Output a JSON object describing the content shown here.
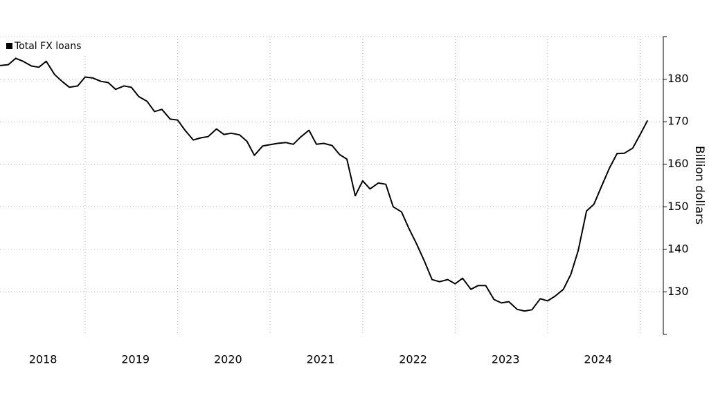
{
  "chart_data": {
    "type": "line",
    "y_label": "Billion dollars",
    "x": [
      2018.08,
      2018.17,
      2018.25,
      2018.33,
      2018.42,
      2018.5,
      2018.58,
      2018.67,
      2018.75,
      2018.83,
      2018.92,
      2019.0,
      2019.08,
      2019.17,
      2019.25,
      2019.33,
      2019.42,
      2019.5,
      2019.58,
      2019.67,
      2019.75,
      2019.83,
      2019.92,
      2020.0,
      2020.08,
      2020.17,
      2020.25,
      2020.33,
      2020.42,
      2020.5,
      2020.58,
      2020.67,
      2020.75,
      2020.83,
      2020.92,
      2021.0,
      2021.08,
      2021.17,
      2021.25,
      2021.33,
      2021.42,
      2021.5,
      2021.58,
      2021.67,
      2021.75,
      2021.83,
      2021.92,
      2022.0,
      2022.08,
      2022.17,
      2022.25,
      2022.33,
      2022.42,
      2022.5,
      2022.58,
      2022.67,
      2022.75,
      2022.83,
      2022.92,
      2023.0,
      2023.08,
      2023.17,
      2023.25,
      2023.33,
      2023.42,
      2023.5,
      2023.58,
      2023.67,
      2023.75,
      2023.83,
      2023.92,
      2024.0,
      2024.08,
      2024.17,
      2024.25,
      2024.33,
      2024.42,
      2024.5,
      2024.58,
      2024.67,
      2024.75,
      2024.83,
      2024.92,
      2025.0,
      2025.08
    ],
    "series": [
      {
        "name": "Total FX loans",
        "color": "#000000",
        "values": [
          183.2,
          183.4,
          184.9,
          184.2,
          183.1,
          182.8,
          184.2,
          181.1,
          179.5,
          178.1,
          178.4,
          180.5,
          180.3,
          179.5,
          179.2,
          177.6,
          178.4,
          178.1,
          175.9,
          174.8,
          172.4,
          172.9,
          170.6,
          170.4,
          168.0,
          165.7,
          166.2,
          166.5,
          168.3,
          167.0,
          167.3,
          166.9,
          165.4,
          162.1,
          164.3,
          164.6,
          164.9,
          165.1,
          164.7,
          166.4,
          168.0,
          164.7,
          164.9,
          164.4,
          162.3,
          161.2,
          152.6,
          156.1,
          154.2,
          155.6,
          155.3,
          150.0,
          148.8,
          144.9,
          141.4,
          137.1,
          132.9,
          132.4,
          132.9,
          131.9,
          133.2,
          130.6,
          131.5,
          131.5,
          128.2,
          127.4,
          127.7,
          125.9,
          125.5,
          125.8,
          128.4,
          127.9,
          129.0,
          130.6,
          134.1,
          139.7,
          149.0,
          150.6,
          154.7,
          159.2,
          162.5,
          162.6,
          163.8,
          167.0,
          170.3
        ]
      }
    ],
    "xlim": [
      2018.08,
      2025.25
    ],
    "xticks": [
      {
        "value": 2018.5,
        "label": "2018"
      },
      {
        "value": 2019.5,
        "label": "2019"
      },
      {
        "value": 2020.5,
        "label": "2020"
      },
      {
        "value": 2021.5,
        "label": "2021"
      },
      {
        "value": 2022.5,
        "label": "2022"
      },
      {
        "value": 2023.5,
        "label": "2023"
      },
      {
        "value": 2024.5,
        "label": "2024"
      }
    ],
    "xgrid": [
      2019,
      2020,
      2021,
      2022,
      2023,
      2024,
      2025
    ],
    "ylim": [
      120,
      190
    ],
    "yticks": [
      130,
      140,
      150,
      160,
      170,
      180
    ],
    "grid": true,
    "legend": "top-left"
  }
}
